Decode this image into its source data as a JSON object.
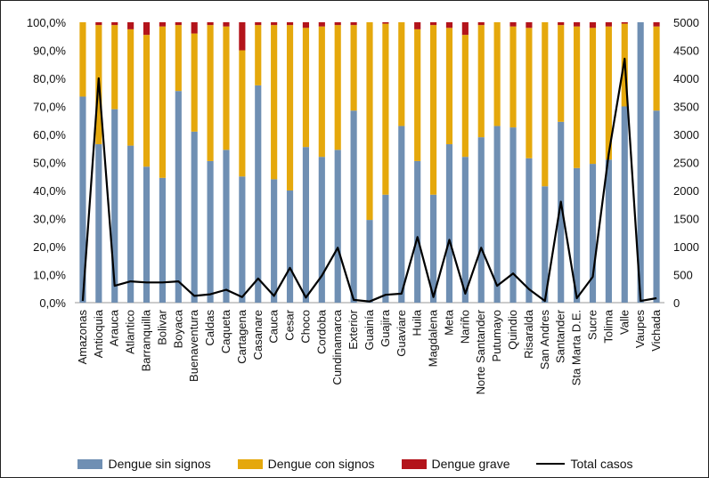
{
  "chart_data": {
    "type": "bar",
    "stacked": true,
    "categories": [
      "Amazonas",
      "Antioquia",
      "Arauca",
      "Atlantico",
      "Barranquilla",
      "Bolivar",
      "Boyaca",
      "Buenaventura",
      "Caldas",
      "Caqueta",
      "Cartagena",
      "Casanare",
      "Cauca",
      "Cesar",
      "Choco",
      "Cordoba",
      "Cundinamarca",
      "Exterior",
      "Guainía",
      "Guajira",
      "Guaviare",
      "Huila",
      "Magdalena",
      "Meta",
      "Nariño",
      "Norte Santander",
      "Putumayo",
      "Quindio",
      "Risaralda",
      "San Andres",
      "Santander",
      "Sta Marta D.E.",
      "Sucre",
      "Tolima",
      "Valle",
      "Vaupes",
      "Vichada"
    ],
    "series": [
      {
        "name": "Dengue sin signos",
        "color": "#6f8fb3",
        "axis": "left",
        "values": [
          73.5,
          56.5,
          69,
          56,
          48.5,
          44.5,
          75.5,
          61,
          50.5,
          54.5,
          45,
          77.5,
          44,
          40,
          55.5,
          52,
          54.5,
          68.5,
          29.5,
          38.5,
          63,
          50.5,
          38.5,
          56.5,
          52,
          59,
          63,
          62.5,
          51.5,
          41.5,
          64.5,
          48,
          49.5,
          51,
          70,
          100,
          68.5
        ]
      },
      {
        "name": "Dengue con signos",
        "color": "#e5a80c",
        "axis": "left",
        "values": [
          26.5,
          42.5,
          30,
          41.5,
          47,
          54,
          23.5,
          35,
          48.5,
          44,
          45,
          21.5,
          55,
          59,
          42.5,
          46.5,
          44.5,
          30.5,
          70.5,
          61,
          37,
          47,
          60.5,
          41.5,
          43.5,
          40,
          37,
          36,
          46.5,
          58.5,
          34.5,
          50.5,
          48.5,
          47.5,
          29.5,
          0,
          30
        ]
      },
      {
        "name": "Dengue grave",
        "color": "#b3141b",
        "axis": "left",
        "values": [
          0,
          1,
          1,
          2.5,
          4.5,
          1.5,
          1,
          4,
          1,
          1.5,
          10,
          1,
          1,
          1,
          2,
          1.5,
          1,
          1,
          0,
          0.5,
          0,
          2.5,
          1,
          2,
          4.5,
          1,
          0,
          1.5,
          2,
          0,
          1,
          1.5,
          2,
          1.5,
          0.5,
          0,
          1.5
        ]
      },
      {
        "name": "Total casos",
        "color": "#000000",
        "axis": "right",
        "type": "line",
        "values": [
          30,
          4000,
          300,
          380,
          360,
          360,
          380,
          120,
          150,
          230,
          100,
          430,
          120,
          620,
          90,
          480,
          980,
          50,
          20,
          140,
          160,
          1170,
          100,
          1120,
          160,
          980,
          300,
          520,
          240,
          30,
          1800,
          80,
          460,
          2650,
          4350,
          30,
          80
        ]
      }
    ],
    "y_left": {
      "ticks": [
        "0,0%",
        "10,0%",
        "20,0%",
        "30,0%",
        "40,0%",
        "50,0%",
        "60,0%",
        "70,0%",
        "80,0%",
        "90,0%",
        "100,0%"
      ],
      "ylim": [
        0,
        100
      ]
    },
    "y_right": {
      "ticks": [
        "0",
        "500",
        "1000",
        "1500",
        "2000",
        "2500",
        "3000",
        "3500",
        "4000",
        "4500",
        "5000"
      ],
      "ylim": [
        0,
        5000
      ]
    },
    "grid": false,
    "legend_position": "bottom"
  },
  "legend": [
    {
      "label": "Dengue sin signos",
      "color": "#6f8fb3",
      "kind": "box"
    },
    {
      "label": "Dengue con signos",
      "color": "#e5a80c",
      "kind": "box"
    },
    {
      "label": "Dengue grave",
      "color": "#b3141b",
      "kind": "box"
    },
    {
      "label": "Total casos",
      "color": "#000000",
      "kind": "line"
    }
  ]
}
